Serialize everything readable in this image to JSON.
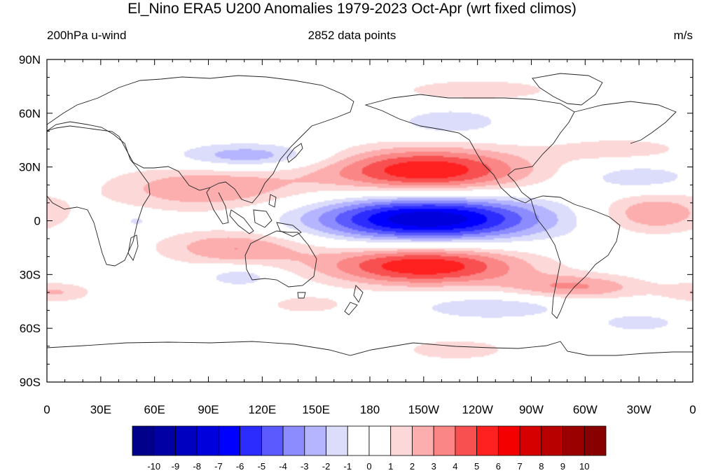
{
  "title": "El_Nino ERA5 U200 Anomalies 1979-2023 Oct-Apr (wrt fixed climos)",
  "left_label": "200hPa u-wind",
  "center_label": "2852 data points",
  "right_label": "m/s",
  "lon_ticks": [
    "0",
    "30E",
    "60E",
    "90E",
    "120E",
    "150E",
    "180",
    "150W",
    "120W",
    "90W",
    "60W",
    "30W",
    "0"
  ],
  "lat_ticks": [
    "90N",
    "60N",
    "30N",
    "0",
    "30S",
    "60S",
    "90S"
  ],
  "colorbar": {
    "labels": [
      "-10",
      "-9",
      "-8",
      "-7",
      "-6",
      "-5",
      "-4",
      "-3",
      "-2",
      "-1",
      "0",
      "1",
      "2",
      "3",
      "4",
      "5",
      "6",
      "7",
      "8",
      "9",
      "10"
    ],
    "colors": [
      "#00008a",
      "#0000a4",
      "#0000c0",
      "#0000dc",
      "#0000ff",
      "#2c2cff",
      "#5a5aff",
      "#8c8cff",
      "#b4b4ff",
      "#dcdcfb",
      "#ffffff",
      "#ffffff",
      "#fcd8d8",
      "#fcaeae",
      "#fa8686",
      "#f85050",
      "#ff2020",
      "#f40000",
      "#d60000",
      "#b80000",
      "#9a0000",
      "#880000"
    ]
  },
  "chart_data": {
    "type": "heatmap",
    "title": "El_Nino ERA5 U200 Anomalies 1979-2023 Oct-Apr (wrt fixed climos)",
    "variable": "200hPa u-wind",
    "units": "m/s",
    "n_points": 2852,
    "lon_range": [
      0,
      360
    ],
    "lat_range": [
      -90,
      90
    ],
    "levels": [
      -10,
      -9,
      -8,
      -7,
      -6,
      -5,
      -4,
      -3,
      -2,
      -1,
      0,
      1,
      2,
      3,
      4,
      5,
      6,
      7,
      8,
      9,
      10
    ],
    "features": [
      {
        "lon": 212,
        "lat": 1,
        "dlon": 45,
        "dlat": 9,
        "value": -8
      },
      {
        "lon": 212,
        "lat": 28,
        "dlon": 40,
        "dlat": 9,
        "value": 6
      },
      {
        "lon": 210,
        "lat": -25,
        "dlon": 40,
        "dlat": 8,
        "value": 6
      },
      {
        "lon": 90,
        "lat": 18,
        "dlon": 40,
        "dlat": 9,
        "value": 3
      },
      {
        "lon": 105,
        "lat": -15,
        "dlon": 30,
        "dlat": 7,
        "value": 3
      },
      {
        "lon": 112,
        "lat": 36,
        "dlon": 28,
        "dlat": 5,
        "value": -3
      },
      {
        "lon": 295,
        "lat": -37,
        "dlon": 28,
        "dlat": 5,
        "value": 3
      },
      {
        "lon": 338,
        "lat": 4,
        "dlon": 22,
        "dlat": 8,
        "value": 3
      },
      {
        "lon": 225,
        "lat": 55,
        "dlon": 20,
        "dlat": 5,
        "value": -2
      },
      {
        "lon": 248,
        "lat": -48,
        "dlon": 30,
        "dlat": 5,
        "value": -2
      },
      {
        "lon": 330,
        "lat": 24,
        "dlon": 22,
        "dlat": 5,
        "value": -2
      },
      {
        "lon": 108,
        "lat": -31,
        "dlon": 14,
        "dlat": 4,
        "value": -2
      },
      {
        "lon": 5,
        "lat": -40,
        "dlon": 15,
        "dlat": 4,
        "value": 2
      },
      {
        "lon": 240,
        "lat": 73,
        "dlon": 30,
        "dlat": 4,
        "value": 2
      },
      {
        "lon": 228,
        "lat": -72,
        "dlon": 20,
        "dlat": 4,
        "value": 2
      },
      {
        "lon": 320,
        "lat": 40,
        "dlon": 30,
        "dlat": 5,
        "value": 1.5
      },
      {
        "lon": 145,
        "lat": -47,
        "dlon": 18,
        "dlat": 4,
        "value": 1.5
      },
      {
        "lon": 330,
        "lat": -57,
        "dlon": 18,
        "dlat": 4,
        "value": -1.5
      },
      {
        "lon": 50,
        "lat": 0,
        "dlon": 6,
        "dlat": 3,
        "value": -1.5
      }
    ],
    "grid": false
  }
}
